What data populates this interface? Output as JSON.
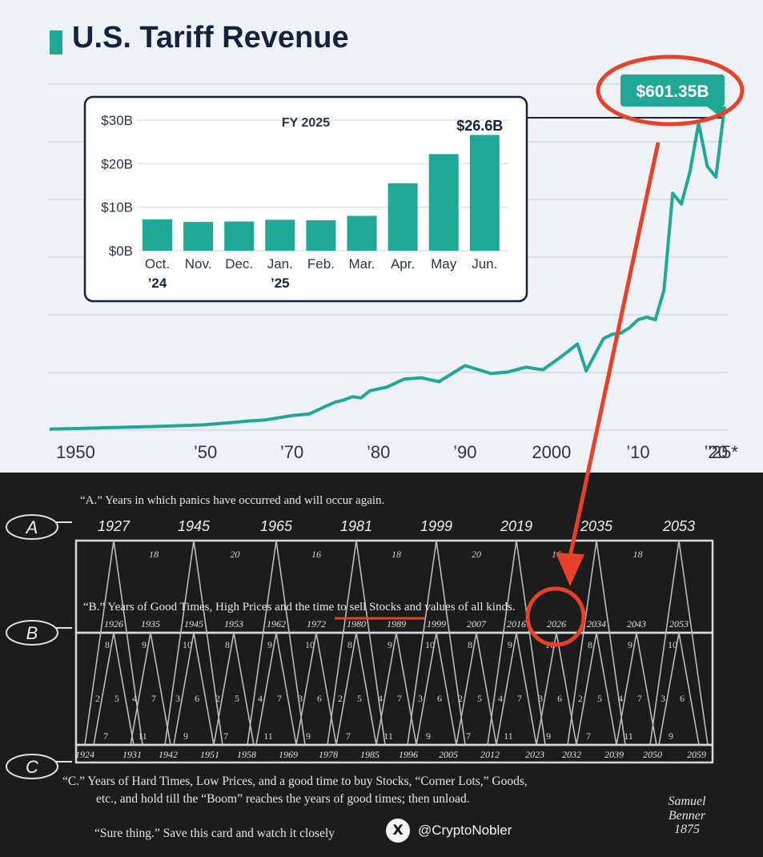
{
  "title": "U.S. Tariff Revenue",
  "callout_label": "$601.35B",
  "chart_data": [
    {
      "type": "line",
      "name": "main",
      "x": [
        1947,
        1950,
        1955,
        1960,
        1965,
        1968,
        1970,
        1972,
        1975,
        1977,
        1979,
        1980,
        1981,
        1982,
        1983,
        1984,
        1986,
        1988,
        1990,
        1992,
        1995,
        1998,
        2000,
        2002,
        2004,
        2006,
        2008,
        2009,
        2010,
        2011,
        2012,
        2013,
        2014,
        2015,
        2016,
        2017,
        2018,
        2019,
        2020,
        2021,
        2022,
        2023,
        2024,
        2025
      ],
      "y": [
        2,
        3,
        5,
        7,
        10,
        14,
        17,
        19,
        27,
        30,
        45,
        52,
        56,
        62,
        60,
        73,
        80,
        95,
        97,
        90,
        120,
        105,
        108,
        117,
        112,
        135,
        160,
        110,
        140,
        170,
        178,
        180,
        190,
        205,
        210,
        205,
        260,
        440,
        420,
        480,
        570,
        490,
        470,
        601.35
      ],
      "xticks": [
        "1950",
        "’50",
        "’70",
        "’80",
        "’90",
        "2000",
        "’10",
        "’20",
        "’25*"
      ],
      "xtick_pos": [
        1950,
        1965,
        1975,
        1985,
        1995,
        2005,
        2015,
        2024,
        2029
      ],
      "xlim": [
        1947,
        2025
      ],
      "ylim": [
        0,
        680
      ],
      "grid": true
    },
    {
      "type": "bar",
      "name": "inset",
      "title": "FY 2025",
      "categories": [
        [
          "Oct.",
          "’24"
        ],
        [
          "Nov.",
          ""
        ],
        [
          "Dec.",
          ""
        ],
        [
          "Jan.",
          "’25"
        ],
        [
          "Feb.",
          ""
        ],
        [
          "Mar.",
          ""
        ],
        [
          "Apr.",
          ""
        ],
        [
          "May",
          ""
        ],
        [
          "Jun.",
          ""
        ]
      ],
      "values": [
        7.2,
        6.6,
        6.7,
        7.1,
        7.0,
        8.0,
        15.5,
        22.2,
        26.6
      ],
      "value_label": "$26.6B",
      "yticks": [
        "$30B",
        "$20B",
        "$10B",
        "$0B"
      ],
      "ytick_vals": [
        30,
        20,
        10,
        0
      ],
      "ylim": [
        0,
        30
      ]
    }
  ],
  "benner": {
    "line_a": "“A.” Years in which panics have occurred and will occur again.",
    "line_b": "“B.” Years of Good Times, High Prices and the time to sell Stocks and values of all kinds.",
    "line_c1": "“C.”  Years of Hard Times, Low Prices, and a good time to buy Stocks, “Corner Lots,” Goods,",
    "line_c2": "etc., and hold till  the “Boom” reaches the years of good times; then unload.",
    "footer": "“Sure thing.” Save this card and watch it closely",
    "signature": "Samuel Benner 1875",
    "hand_a": "A",
    "hand_b": "B",
    "hand_c": "C",
    "a_years": [
      "1927",
      "1945",
      "1965",
      "1981",
      "1999",
      "2019",
      "2035",
      "2053"
    ],
    "a_gaps": [
      "18",
      "20",
      "16",
      "18",
      "20",
      "16",
      "18"
    ],
    "b_years": [
      "1926",
      "1935",
      "1945",
      "1953",
      "1962",
      "1972",
      "1980",
      "1989",
      "1999",
      "2007",
      "2016",
      "2026",
      "2034",
      "2043",
      "2053"
    ],
    "c_years": [
      "1924",
      "1931",
      "1942",
      "1951",
      "1958",
      "1969",
      "1978",
      "1985",
      "1996",
      "2005",
      "2012",
      "2023",
      "2032",
      "2039",
      "2050",
      "2059"
    ],
    "b_top_gaps": [
      "8",
      "9",
      "10",
      "8",
      "9",
      "10",
      "8",
      "9",
      "10",
      "8",
      "9",
      "10",
      "8",
      "9",
      "10"
    ],
    "b_mid_gaps": [
      "2",
      "5",
      "4",
      "7",
      "3",
      "6",
      "2",
      "5",
      "4",
      "7",
      "3",
      "6",
      "2",
      "5",
      "4",
      "7",
      "3",
      "6",
      "2",
      "5",
      "4",
      "7",
      "3",
      "6",
      "2",
      "5",
      "4",
      "7",
      "3",
      "6"
    ],
    "b_bot_gaps": [
      "7",
      "11",
      "9",
      "7",
      "11",
      "9",
      "7",
      "11",
      "9",
      "7",
      "11",
      "9",
      "7",
      "11",
      "9"
    ],
    "highlight_year": "2026"
  },
  "handle": "@CryptoNobler",
  "x_logo": "X",
  "colors": {
    "teal": "#1fa896",
    "navy": "#14233d",
    "red": "#e8402a"
  }
}
